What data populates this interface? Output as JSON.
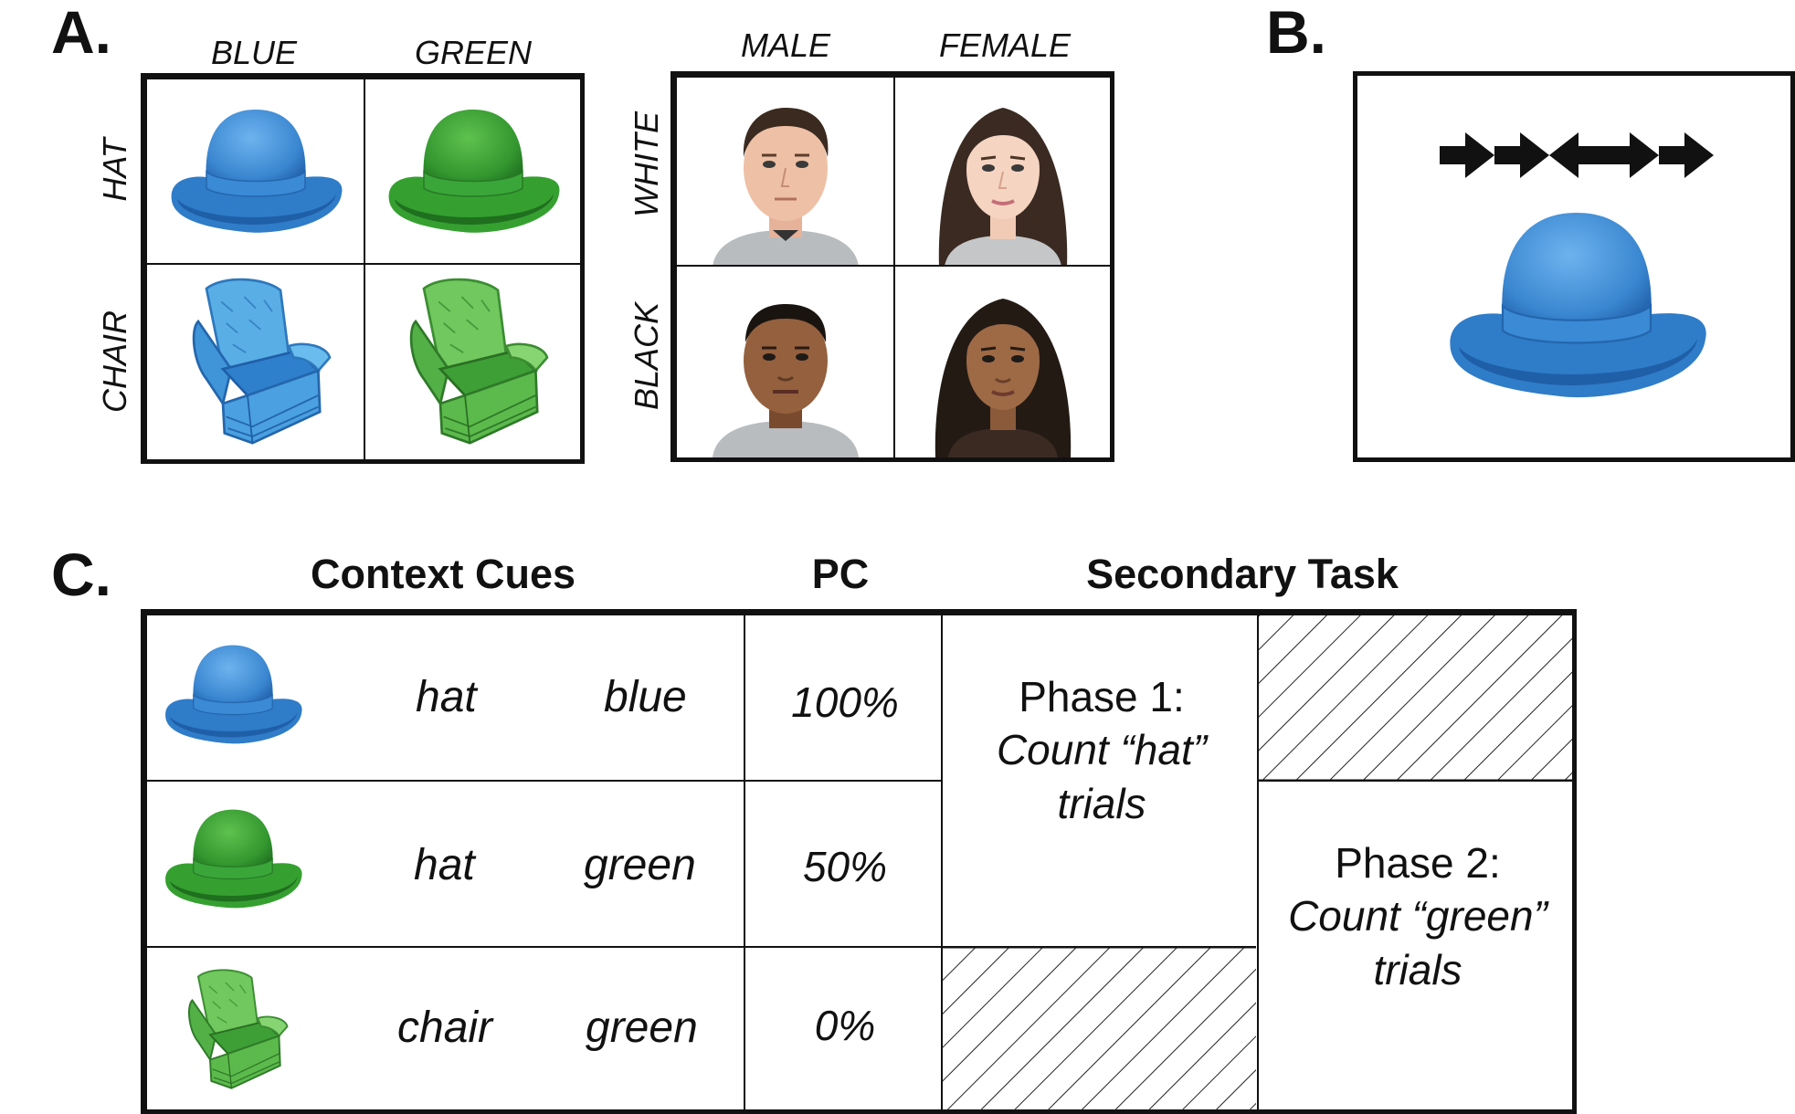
{
  "panel_a": {
    "letter": "A.",
    "objects": {
      "columns": [
        "BLUE",
        "GREEN"
      ],
      "rows": [
        "HAT",
        "CHAIR"
      ],
      "icons": [
        "blue-hat-icon",
        "green-hat-icon",
        "blue-chair-icon",
        "green-chair-icon"
      ]
    },
    "faces": {
      "columns": [
        "MALE",
        "FEMALE"
      ],
      "rows": [
        "WHITE",
        "BLACK"
      ],
      "icons": [
        "white-male-face-icon",
        "white-female-face-icon",
        "black-male-face-icon",
        "black-female-face-icon"
      ]
    }
  },
  "panel_b": {
    "letter": "B.",
    "flanker_arrows": [
      "right",
      "right",
      "left",
      "right",
      "right"
    ],
    "icon": "blue-hat-icon"
  },
  "panel_c": {
    "letter": "C.",
    "headers": {
      "cues": "Context Cues",
      "pc": "PC",
      "secondary": "Secondary Task"
    },
    "rows": [
      {
        "object": "hat",
        "color": "blue",
        "pc": "100%",
        "icon": "blue-hat-icon"
      },
      {
        "object": "hat",
        "color": "green",
        "pc": "50%",
        "icon": "green-hat-icon"
      },
      {
        "object": "chair",
        "color": "green",
        "pc": "0%",
        "icon": "green-chair-icon"
      }
    ],
    "phase1": {
      "title": "Phase 1:",
      "task_line1": "Count “hat”",
      "task_line2": "trials"
    },
    "phase2": {
      "title": "Phase 2:",
      "task_line1": "Count “green”",
      "task_line2": "trials"
    }
  },
  "colors": {
    "blue": "#3f8fd8",
    "blue_dark": "#1f5fa8",
    "blue_light": "#7ec0f0",
    "green": "#3aa23a",
    "green_dark": "#1f6f1f",
    "green_light": "#8fd66a",
    "chair_blue": "#5aaee6",
    "chair_green": "#66c25a"
  }
}
